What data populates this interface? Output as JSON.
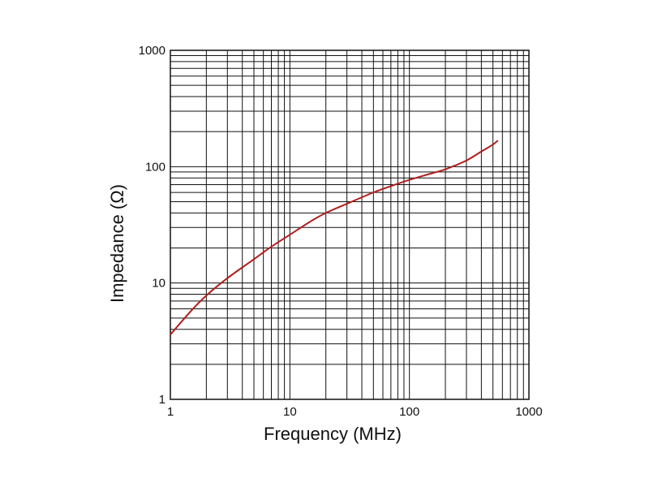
{
  "chart_data": {
    "type": "line",
    "title": "",
    "xlabel": "Frequency (MHz)",
    "ylabel": "Impedance (Ω)",
    "x_scale": "log",
    "y_scale": "log",
    "xlim": [
      1,
      1000
    ],
    "ylim": [
      1,
      1000
    ],
    "grid": true,
    "x_tick_labels": [
      "1",
      "10",
      "100",
      "1000"
    ],
    "y_tick_labels": [
      "1",
      "10",
      "100",
      "1000"
    ],
    "colors": {
      "series": "#b01e1e",
      "grid": "#111111"
    },
    "series": [
      {
        "x": [
          1,
          1.5,
          2,
          3,
          5,
          7,
          10,
          15,
          20,
          30,
          50,
          70,
          100,
          150,
          200,
          300,
          400,
          500,
          550
        ],
        "y": [
          3.6,
          5.8,
          7.8,
          11,
          16,
          20.5,
          26,
          34,
          40,
          48,
          60,
          68,
          77,
          87,
          95,
          113,
          135,
          155,
          168
        ]
      }
    ]
  }
}
